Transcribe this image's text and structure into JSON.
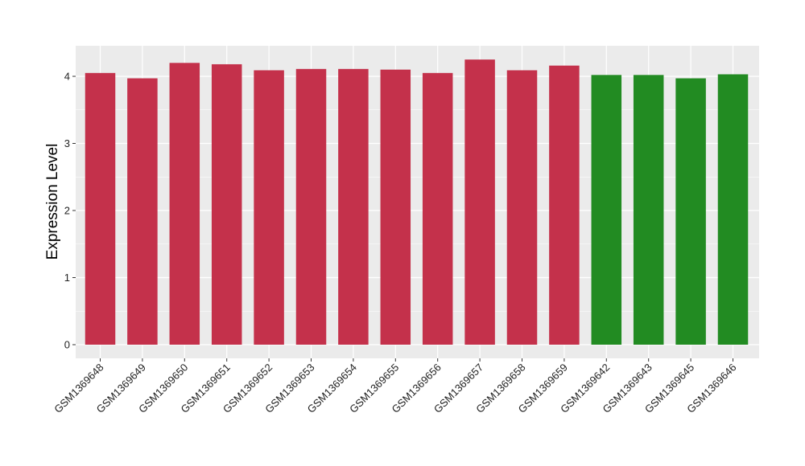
{
  "chart_data": {
    "type": "bar",
    "title": "",
    "xlabel": "",
    "ylabel": "Expression Level",
    "ylim": [
      0,
      4.45
    ],
    "yticks": [
      0,
      1,
      2,
      3,
      4
    ],
    "grid": true,
    "categories": [
      "GSM1369648",
      "GSM1369649",
      "GSM1369650",
      "GSM1369651",
      "GSM1369652",
      "GSM1369653",
      "GSM1369654",
      "GSM1369655",
      "GSM1369656",
      "GSM1369657",
      "GSM1369658",
      "GSM1369659",
      "GSM1369642",
      "GSM1369643",
      "GSM1369645",
      "GSM1369646"
    ],
    "values": [
      4.05,
      3.97,
      4.2,
      4.18,
      4.09,
      4.11,
      4.11,
      4.1,
      4.05,
      4.25,
      4.09,
      4.16,
      4.02,
      4.02,
      3.97,
      4.03
    ],
    "groups": [
      "a",
      "a",
      "a",
      "a",
      "a",
      "a",
      "a",
      "a",
      "a",
      "a",
      "a",
      "a",
      "b",
      "b",
      "b",
      "b"
    ],
    "colors": {
      "a": "#C4314B",
      "b": "#228B22"
    },
    "panel_background": "#EBEBEB",
    "grid_color": "#FFFFFF"
  }
}
